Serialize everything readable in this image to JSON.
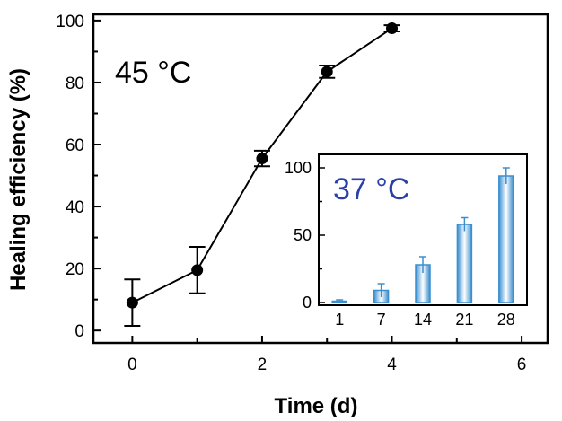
{
  "chart_data": [
    {
      "type": "line",
      "title": "",
      "xlabel": "Time (d)",
      "ylabel": "Healing efficiency (%)",
      "xlim": [
        -0.6,
        6.4
      ],
      "ylim": [
        -4,
        102
      ],
      "xticks": [
        "0",
        "2",
        "4",
        "6"
      ],
      "yticks": [
        "0",
        "20",
        "40",
        "60",
        "80",
        "100"
      ],
      "annotation": "45 °C",
      "series": [
        {
          "x": [
            0,
            1,
            2,
            3,
            4
          ],
          "y": [
            9,
            19.5,
            55.5,
            83.5,
            97.5
          ],
          "err": [
            7.5,
            7.5,
            2.5,
            2,
            1
          ]
        }
      ],
      "color": "#000000",
      "grid": false
    },
    {
      "type": "bar",
      "title": "",
      "xlabel": "",
      "ylabel": "",
      "categories": [
        "1",
        "7",
        "14",
        "21",
        "28"
      ],
      "values": [
        1,
        9,
        28,
        58,
        94
      ],
      "err": [
        1,
        5,
        6,
        5,
        6
      ],
      "ylim": [
        -2,
        110
      ],
      "yticks": [
        "0",
        "50",
        "100"
      ],
      "annotation": "37 °C",
      "color": "#3a8fd0",
      "annotation_color": "#2b3fa8",
      "grid": false
    }
  ]
}
